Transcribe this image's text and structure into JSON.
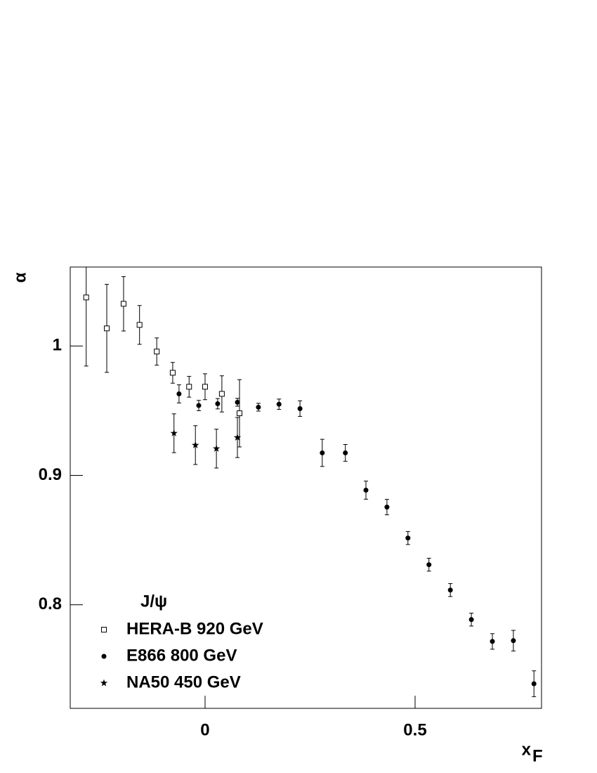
{
  "chart_data": {
    "type": "scatter",
    "xlabel": "x",
    "xlabel_sub": "F",
    "ylabel": "α",
    "xlim": [
      -0.321,
      0.801
    ],
    "ylim": [
      0.72,
      1.061
    ],
    "xticks": [
      0,
      0.5
    ],
    "yticks": [
      0.8,
      0.9,
      1
    ],
    "legend_title": "J/ψ",
    "legend": "lower left",
    "series": [
      {
        "name": "HERA-B 920 GeV",
        "marker": "square-open",
        "color": "#000000",
        "x": [
          -0.283,
          -0.234,
          -0.194,
          -0.156,
          -0.115,
          -0.077,
          -0.038,
          0.0,
          0.04,
          0.082
        ],
        "values": [
          1.0375,
          1.0136,
          1.0326,
          1.0163,
          0.9957,
          0.9793,
          0.9685,
          0.9685,
          0.963,
          0.948
        ],
        "errors": [
          0.053,
          0.034,
          0.021,
          0.015,
          0.0105,
          0.008,
          0.008,
          0.01,
          0.014,
          0.026
        ]
      },
      {
        "name": "E866 800 GeV",
        "marker": "circle",
        "color": "#000000",
        "x": [
          -0.062,
          -0.015,
          0.03,
          0.077,
          0.127,
          0.176,
          0.226,
          0.279,
          0.334,
          0.383,
          0.433,
          0.483,
          0.533,
          0.584,
          0.634,
          0.684,
          0.734,
          0.783
        ],
        "values": [
          0.963,
          0.954,
          0.9554,
          0.9565,
          0.9527,
          0.955,
          0.9516,
          0.9174,
          0.9174,
          0.8886,
          0.8755,
          0.8516,
          0.831,
          0.8114,
          0.7886,
          0.7717,
          0.7723,
          0.739
        ],
        "errors": [
          0.007,
          0.004,
          0.004,
          0.003,
          0.003,
          0.004,
          0.006,
          0.0105,
          0.0065,
          0.007,
          0.006,
          0.005,
          0.005,
          0.005,
          0.005,
          0.006,
          0.008,
          0.01
        ]
      },
      {
        "name": "NA50 450 GeV",
        "marker": "star",
        "color": "#000000",
        "x": [
          -0.074,
          -0.023,
          0.027,
          0.077
        ],
        "values": [
          0.9326,
          0.9234,
          0.9207,
          0.9293
        ],
        "errors": [
          0.015,
          0.015,
          0.015,
          0.0155
        ]
      }
    ]
  }
}
